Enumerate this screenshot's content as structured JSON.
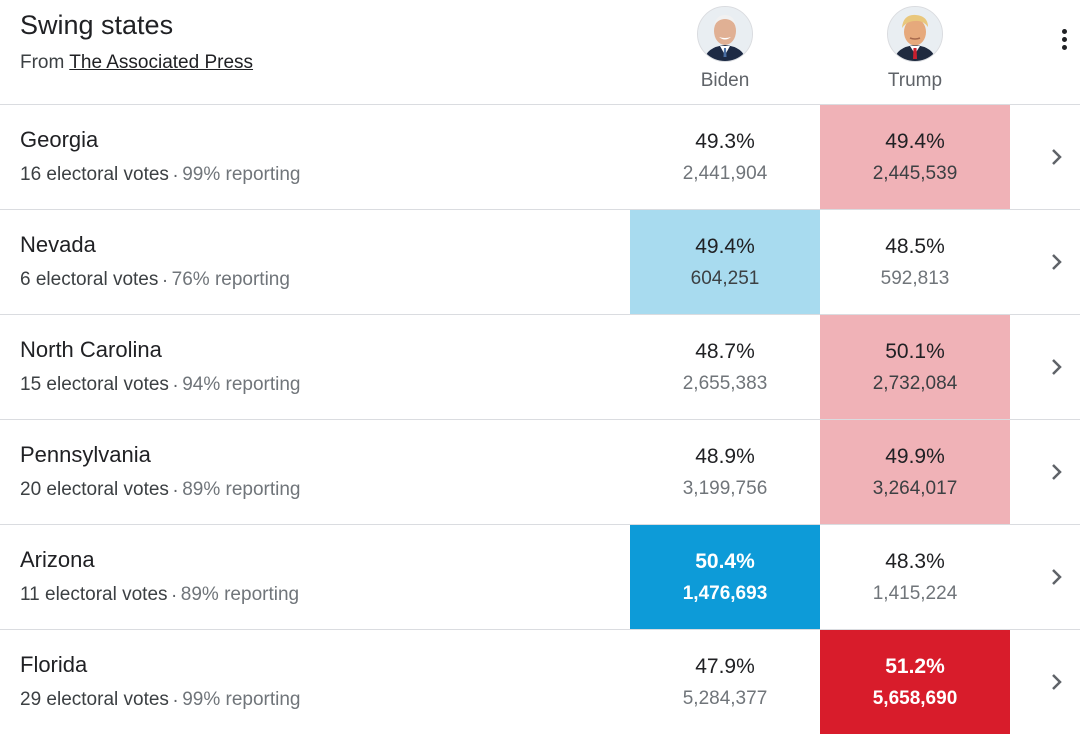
{
  "header": {
    "title": "Swing states",
    "source_prefix": "From",
    "source_link": "The Associated Press",
    "menu_icon": "more-vert-icon"
  },
  "candidates": [
    {
      "name": "Biden",
      "avatar": "biden-avatar"
    },
    {
      "name": "Trump",
      "avatar": "trump-avatar"
    }
  ],
  "states": [
    {
      "name": "Georgia",
      "electoral": "16 electoral votes",
      "reporting": "99% reporting",
      "biden": {
        "pct": "49.3%",
        "votes": "2,441,904"
      },
      "trump": {
        "pct": "49.4%",
        "votes": "2,445,539"
      },
      "highlight": "trump-leading"
    },
    {
      "name": "Nevada",
      "electoral": "6 electoral votes",
      "reporting": "76% reporting",
      "biden": {
        "pct": "49.4%",
        "votes": "604,251"
      },
      "trump": {
        "pct": "48.5%",
        "votes": "592,813"
      },
      "highlight": "biden-leading"
    },
    {
      "name": "North Carolina",
      "electoral": "15 electoral votes",
      "reporting": "94% reporting",
      "biden": {
        "pct": "48.7%",
        "votes": "2,655,383"
      },
      "trump": {
        "pct": "50.1%",
        "votes": "2,732,084"
      },
      "highlight": "trump-leading"
    },
    {
      "name": "Pennsylvania",
      "electoral": "20 electoral votes",
      "reporting": "89% reporting",
      "biden": {
        "pct": "48.9%",
        "votes": "3,199,756"
      },
      "trump": {
        "pct": "49.9%",
        "votes": "3,264,017"
      },
      "highlight": "trump-leading"
    },
    {
      "name": "Arizona",
      "electoral": "11 electoral votes",
      "reporting": "89% reporting",
      "biden": {
        "pct": "50.4%",
        "votes": "1,476,693"
      },
      "trump": {
        "pct": "48.3%",
        "votes": "1,415,224"
      },
      "highlight": "biden-winner"
    },
    {
      "name": "Florida",
      "electoral": "29 electoral votes",
      "reporting": "99% reporting",
      "biden": {
        "pct": "47.9%",
        "votes": "5,284,377"
      },
      "trump": {
        "pct": "51.2%",
        "votes": "5,658,690"
      },
      "highlight": "trump-winner"
    }
  ],
  "colors": {
    "biden_leading": "#a8dbef",
    "trump_leading": "#f0b2b7",
    "biden_winner": "#0d9bd8",
    "trump_winner": "#d81c2b"
  }
}
